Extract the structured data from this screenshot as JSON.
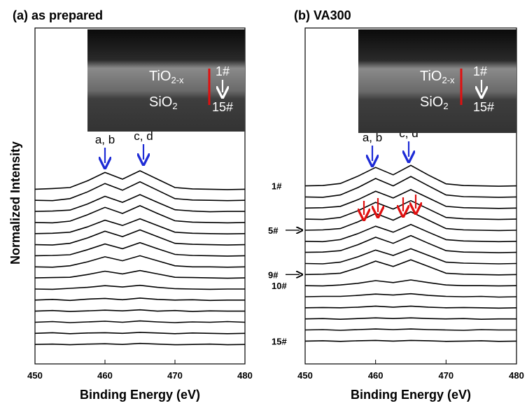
{
  "chart_data": [
    {
      "type": "line",
      "title": "(a) as prepared",
      "x_label": "Binding Energy (eV)",
      "y_label": "Normalized Intensity",
      "xlim": [
        450,
        480
      ],
      "xticks": [
        450,
        460,
        470,
        480
      ],
      "ylim": [
        0,
        100
      ],
      "color": "#000000",
      "annotations": [
        "a, b",
        "c, d"
      ],
      "inset": {
        "top_layer": [
          "TiO",
          "2-x"
        ],
        "bottom_layer": [
          "SiO",
          "2"
        ],
        "from": "1#",
        "to": "15#"
      },
      "x": [
        450,
        452.5,
        455,
        457.5,
        460,
        462.5,
        465,
        467.5,
        470,
        472.5,
        475,
        477.5,
        480
      ],
      "series": [
        {
          "values": [
            52,
            52.2,
            52.5,
            54.5,
            57,
            55,
            57.5,
            55,
            52.5,
            52.1,
            52,
            51.9,
            52
          ]
        },
        {
          "values": [
            48.7,
            48.6,
            49.2,
            51.2,
            53.7,
            51.7,
            54.2,
            51.7,
            49.2,
            48.8,
            48.7,
            48.6,
            48.7
          ]
        },
        {
          "values": [
            45.4,
            45.5,
            45.8,
            47.6,
            49.9,
            48.1,
            50.4,
            48.1,
            45.9,
            45.5,
            45.3,
            45.4,
            45.4
          ]
        },
        {
          "values": [
            42.1,
            42.0,
            42.5,
            44.4,
            46.6,
            44.8,
            47.1,
            44.8,
            42.6,
            42.2,
            42.1,
            42.0,
            42.1
          ]
        },
        {
          "values": [
            38.8,
            38.9,
            39.2,
            40.8,
            42.8,
            41.2,
            43.2,
            41.2,
            39.2,
            38.9,
            38.8,
            38.7,
            38.8
          ]
        },
        {
          "values": [
            35.5,
            35.4,
            35.9,
            37.5,
            39.5,
            37.9,
            39.9,
            37.9,
            35.9,
            35.6,
            35.5,
            35.4,
            35.5
          ]
        },
        {
          "values": [
            32.2,
            32.3,
            32.5,
            34.0,
            35.7,
            34.3,
            36.1,
            34.3,
            32.6,
            32.3,
            32.2,
            32.1,
            32.2
          ]
        },
        {
          "values": [
            28.9,
            28.8,
            29.2,
            30.4,
            31.9,
            30.7,
            32.2,
            30.7,
            29.2,
            28.9,
            28.9,
            28.8,
            28.9
          ]
        },
        {
          "values": [
            25.6,
            25.7,
            25.8,
            26.6,
            27.6,
            26.8,
            27.8,
            26.8,
            25.8,
            25.7,
            25.6,
            25.5,
            25.6
          ]
        },
        {
          "values": [
            22.3,
            22.2,
            22.5,
            22.8,
            23.3,
            22.9,
            23.4,
            22.8,
            22.4,
            22.3,
            22.2,
            22.3,
            22.3
          ]
        },
        {
          "values": [
            19,
            19.2,
            18.9,
            19.3,
            19.5,
            19.1,
            19.6,
            19.2,
            19,
            19.1,
            18.9,
            19,
            19
          ]
        },
        {
          "values": [
            15.7,
            15.9,
            15.6,
            15.8,
            16.0,
            15.8,
            16.1,
            15.7,
            15.9,
            15.6,
            15.8,
            15.7,
            15.7
          ]
        },
        {
          "values": [
            12.4,
            12.6,
            12.3,
            12.5,
            12.7,
            12.4,
            12.8,
            12.5,
            12.3,
            12.5,
            12.4,
            12.6,
            12.4
          ]
        },
        {
          "values": [
            9.1,
            9.3,
            9.0,
            9.2,
            9.3,
            9.1,
            9.4,
            9.2,
            9.0,
            9.2,
            9.1,
            9.0,
            9.1
          ]
        },
        {
          "values": [
            5.8,
            5.9,
            5.7,
            5.9,
            6.0,
            5.8,
            6.1,
            5.9,
            5.7,
            5.8,
            5.9,
            5.7,
            5.8
          ]
        }
      ]
    },
    {
      "type": "line",
      "title": "(b) VA300",
      "x_label": "Binding Energy (eV)",
      "xlim": [
        450,
        480
      ],
      "xticks": [
        450,
        460,
        470,
        480
      ],
      "ylim": [
        0,
        100
      ],
      "color": "#000000",
      "annotations": [
        "a, b",
        "c, d"
      ],
      "inset": {
        "top_layer": [
          "TiO",
          "2-x"
        ],
        "bottom_layer": [
          "SiO",
          "2"
        ],
        "from": "1#",
        "to": "15#"
      },
      "x": [
        450,
        452.5,
        455,
        457.5,
        460,
        462.5,
        465,
        467.5,
        470,
        472.5,
        475,
        477.5,
        480
      ],
      "series": [
        {
          "name": "1#",
          "values": [
            53,
            53.1,
            53.7,
            55.9,
            58.5,
            56.3,
            59.1,
            56.2,
            53.6,
            53.1,
            53,
            52.9,
            53
          ]
        },
        {
          "values": [
            49.7,
            49.6,
            50.3,
            52.5,
            55.2,
            53,
            55.8,
            53,
            50.3,
            49.8,
            49.7,
            49.6,
            49.7
          ]
        },
        {
          "values": [
            46.4,
            46.5,
            46.9,
            48.9,
            51.4,
            49.4,
            51.9,
            49.4,
            46.9,
            46.5,
            46.4,
            46.3,
            46.4
          ]
        },
        {
          "values": [
            43.1,
            43.0,
            43.6,
            45.6,
            48.1,
            46.1,
            48.6,
            46.1,
            43.6,
            43.2,
            43.1,
            43.0,
            43.1
          ]
        },
        {
          "name": "5#",
          "marked": true,
          "values": [
            39.8,
            39.9,
            40.3,
            42.3,
            44.8,
            42.8,
            45.3,
            42.8,
            40.3,
            39.9,
            39.8,
            39.7,
            39.8
          ]
        },
        {
          "values": [
            36.5,
            36.4,
            37.0,
            38.8,
            41.0,
            39.2,
            41.5,
            39.2,
            37.0,
            36.6,
            36.5,
            36.4,
            36.5
          ]
        },
        {
          "values": [
            33.2,
            33.3,
            33.7,
            35.5,
            37.7,
            35.9,
            38.2,
            35.9,
            33.7,
            33.3,
            33.2,
            33.1,
            33.2
          ]
        },
        {
          "values": [
            29.9,
            29.8,
            30.3,
            31.9,
            33.9,
            32.3,
            34.3,
            32.3,
            30.3,
            30.0,
            29.9,
            29.8,
            29.9
          ]
        },
        {
          "name": "9#",
          "marked": true,
          "values": [
            26.6,
            26.7,
            27.0,
            28.6,
            30.6,
            29.0,
            31.0,
            29.0,
            27.0,
            26.7,
            26.6,
            26.5,
            26.6
          ]
        },
        {
          "name": "10#",
          "values": [
            23.3,
            23.2,
            23.5,
            24.0,
            24.8,
            24.2,
            25.0,
            24.2,
            23.5,
            23.3,
            23.3,
            23.2,
            23.3
          ]
        },
        {
          "values": [
            20,
            20.1,
            20.1,
            20.4,
            20.8,
            20.5,
            20.9,
            20.4,
            20.1,
            20,
            20.1,
            19.9,
            20
          ]
        },
        {
          "values": [
            16.7,
            16.8,
            16.7,
            16.9,
            17.2,
            16.9,
            17.2,
            16.9,
            16.7,
            16.8,
            16.7,
            16.6,
            16.7
          ]
        },
        {
          "values": [
            13.4,
            13.5,
            13.3,
            13.5,
            13.7,
            13.5,
            13.7,
            13.5,
            13.4,
            13.5,
            13.3,
            13.4,
            13.4
          ]
        },
        {
          "values": [
            10.1,
            10.2,
            10.0,
            10.2,
            10.4,
            10.2,
            10.4,
            10.2,
            10.1,
            10.0,
            10.2,
            10.1,
            10.1
          ]
        },
        {
          "name": "15#",
          "values": [
            6.8,
            6.9,
            6.7,
            6.9,
            7.0,
            6.8,
            7.0,
            6.9,
            6.7,
            6.8,
            6.9,
            6.7,
            6.8
          ]
        }
      ]
    }
  ]
}
